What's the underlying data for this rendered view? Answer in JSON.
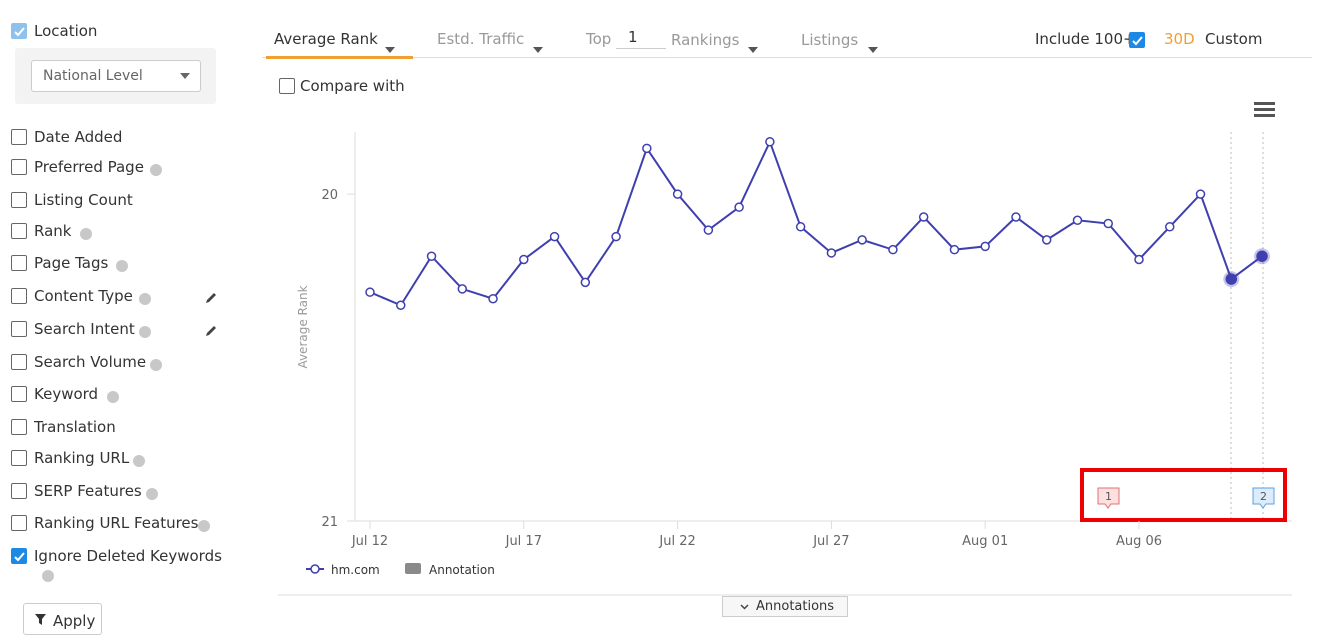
{
  "sidebar": {
    "location": {
      "label": "Location",
      "checked": true,
      "select": "National Level"
    },
    "filters": [
      {
        "label": "Date Added",
        "checked": false,
        "help": false,
        "edit": false
      },
      {
        "label": "Preferred Page",
        "checked": false,
        "help": true,
        "edit": false
      },
      {
        "label": "Listing Count",
        "checked": false,
        "help": false,
        "edit": false
      },
      {
        "label": "Rank",
        "checked": false,
        "help": true,
        "edit": false
      },
      {
        "label": "Page Tags",
        "checked": false,
        "help": true,
        "edit": false
      },
      {
        "label": "Content Type",
        "checked": false,
        "help": true,
        "edit": true
      },
      {
        "label": "Search Intent",
        "checked": false,
        "help": true,
        "edit": true
      },
      {
        "label": "Search Volume",
        "checked": false,
        "help": true,
        "edit": false
      },
      {
        "label": "Keyword",
        "checked": false,
        "help": true,
        "edit": false
      },
      {
        "label": "Translation",
        "checked": false,
        "help": false,
        "edit": false
      },
      {
        "label": "Ranking URL",
        "checked": false,
        "help": true,
        "edit": false
      },
      {
        "label": "SERP Features",
        "checked": false,
        "help": true,
        "edit": false
      },
      {
        "label": "Ranking URL Features",
        "checked": false,
        "help": true,
        "edit": false
      },
      {
        "label": "Ignore Deleted Keywords",
        "checked": true,
        "help": true,
        "edit": false
      }
    ],
    "apply": "Apply"
  },
  "toolbar": {
    "tabs": [
      "Average Rank",
      "Estd. Traffic"
    ],
    "top_label": "Top",
    "top_value": "1",
    "rankings": "Rankings",
    "listings": "Listings",
    "include": "Include 100+",
    "include_checked": true,
    "period": "30D",
    "custom": "Custom"
  },
  "compare": "Compare with",
  "chart_data": {
    "type": "line",
    "y_label": "Average Rank",
    "categories": [
      "Jul 12",
      null,
      null,
      null,
      null,
      "Jul 17",
      null,
      null,
      null,
      null,
      "Jul 22",
      null,
      null,
      null,
      null,
      "Jul 27",
      null,
      null,
      null,
      null,
      "Aug 01",
      null,
      null,
      null,
      null,
      "Aug 06",
      null,
      null,
      null,
      null
    ],
    "series": [
      {
        "name": "hm.com",
        "color": "#3f3fb0",
        "values": [
          20.3,
          20.34,
          20.19,
          20.29,
          20.32,
          20.2,
          20.13,
          20.27,
          20.13,
          19.86,
          20.0,
          20.11,
          20.04,
          19.84,
          20.1,
          20.18,
          20.14,
          20.17,
          20.07,
          20.17,
          20.16,
          20.07,
          20.14,
          20.08,
          20.09,
          20.2,
          20.1,
          20.0,
          20.26,
          20.19
        ]
      }
    ],
    "ylim": [
      21,
      19.81
    ],
    "yticks": [
      20,
      21
    ],
    "legend_annotation": "Annotation",
    "annotations": [
      "1",
      "2"
    ]
  },
  "annotations_button": "Annotations"
}
